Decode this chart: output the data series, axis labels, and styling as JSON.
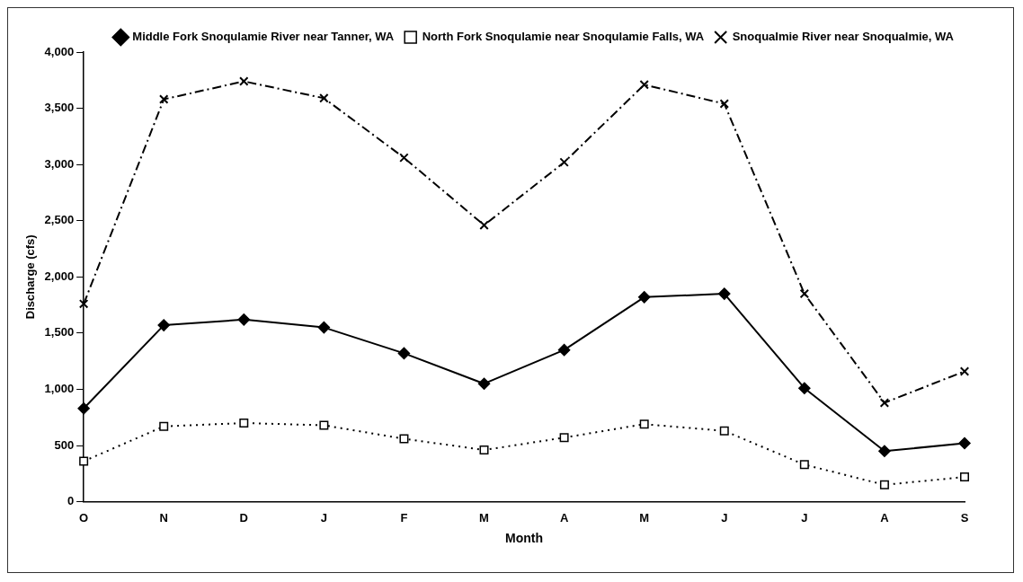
{
  "chart_data": {
    "type": "line",
    "xlabel": "Month",
    "ylabel": "Discharge (cfs)",
    "categories": [
      "O",
      "N",
      "D",
      "J",
      "F",
      "M",
      "A",
      "M",
      "J",
      "J",
      "A",
      "S"
    ],
    "series": [
      {
        "name": "Middle Fork Snoqulamie River near Tanner, WA",
        "color": "#000000",
        "marker": "diamond",
        "line_style": "solid",
        "values": [
          830,
          1570,
          1620,
          1550,
          1320,
          1050,
          1350,
          1820,
          1850,
          1010,
          450,
          520
        ]
      },
      {
        "name": "North Fork Snoqulamie near Snoqulamie Falls, WA",
        "color": "#000000",
        "marker": "square",
        "line_style": "dotted",
        "values": [
          360,
          670,
          700,
          680,
          560,
          460,
          570,
          690,
          630,
          330,
          150,
          220
        ]
      },
      {
        "name": "Snoqualmie River near Snoqualmie, WA",
        "color": "#000000",
        "marker": "cross",
        "line_style": "dashed",
        "values": [
          1760,
          3580,
          3740,
          3590,
          3060,
          2460,
          3020,
          3710,
          3540,
          1850,
          880,
          1160
        ]
      }
    ],
    "ylim": [
      0,
      4000
    ],
    "yticks": [
      0,
      500,
      {
        "value": 1000,
        "label": "1,000"
      },
      {
        "value": 1500,
        "label": "1,500"
      },
      {
        "value": 2000,
        "label": "2,000"
      },
      {
        "value": 2500,
        "label": "2,500"
      },
      {
        "value": 3000,
        "label": "3,000"
      },
      {
        "value": 3500,
        "label": "3,500"
      },
      {
        "value": 4000,
        "label": "4,000"
      }
    ],
    "grid": false,
    "legend": "top right"
  }
}
